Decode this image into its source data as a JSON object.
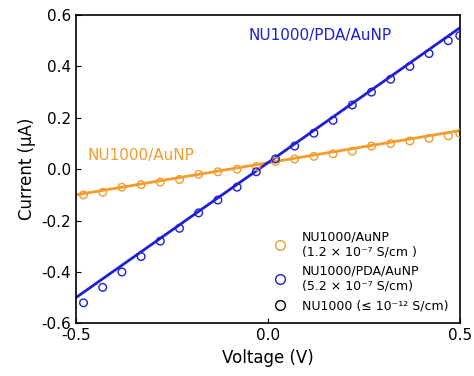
{
  "chart_data": {
    "type": "scatter",
    "x_label": "Voltage (V)",
    "y_label": "Current (μA)",
    "xlim": [
      -0.5,
      0.5
    ],
    "xticks": [
      -0.5,
      {
        "value": 0,
        "label": "0.0"
      },
      0.5
    ],
    "ylim": [
      -0.6,
      0.6
    ],
    "yticks": [
      -0.6,
      -0.4,
      -0.2,
      {
        "value": 0,
        "label": "0.0"
      },
      0.2,
      0.4,
      0.6
    ],
    "legend": "lower right",
    "annotations": [
      {
        "text": "NU1000/AuNP",
        "color": "#f39c2b"
      },
      {
        "text": "NU1000/PDA/AuNP",
        "color": "#1f1fd6"
      }
    ],
    "series": [
      {
        "name": "NU1000/AuNP\n(1.2 × 10⁻⁷ S/cm )",
        "type": "scatter",
        "marker": "o",
        "color": "#f39c2b",
        "x": [
          -0.48,
          -0.43,
          -0.38,
          -0.33,
          -0.28,
          -0.23,
          -0.18,
          -0.13,
          -0.08,
          -0.03,
          0.02,
          0.07,
          0.12,
          0.17,
          0.22,
          0.27,
          0.32,
          0.37,
          0.42,
          0.47,
          0.5
        ],
        "values": [
          -0.1,
          -0.09,
          -0.07,
          -0.06,
          -0.05,
          -0.04,
          -0.02,
          -0.01,
          0.0,
          0.01,
          0.03,
          0.04,
          0.05,
          0.06,
          0.07,
          0.09,
          0.1,
          0.11,
          0.12,
          0.13,
          0.14
        ]
      },
      {
        "name": "NU1000/PDA/AuNP\n(5.2 × 10⁻⁷ S/cm)",
        "type": "scatter",
        "marker": "o",
        "color": "#1f1fd6",
        "x": [
          -0.48,
          -0.43,
          -0.38,
          -0.33,
          -0.28,
          -0.23,
          -0.18,
          -0.13,
          -0.08,
          -0.03,
          0.02,
          0.07,
          0.12,
          0.17,
          0.22,
          0.27,
          0.32,
          0.37,
          0.42,
          0.47,
          0.5
        ],
        "values": [
          -0.52,
          -0.46,
          -0.4,
          -0.34,
          -0.28,
          -0.23,
          -0.17,
          -0.12,
          -0.07,
          -0.01,
          0.04,
          0.09,
          0.14,
          0.19,
          0.25,
          0.3,
          0.35,
          0.4,
          0.45,
          0.5,
          0.52
        ]
      },
      {
        "name": "NU1000 (≤ 10⁻¹² S/cm)",
        "type": "scatter",
        "marker": "o",
        "color": "#000000",
        "x": [],
        "values": []
      },
      {
        "type": "line",
        "line_style": "solid",
        "color": "#f39c2b",
        "x": [
          -0.5,
          0.5
        ],
        "values": [
          -0.1,
          0.15
        ]
      },
      {
        "type": "line",
        "line_style": "solid",
        "color": "#1f1fd6",
        "x": [
          -0.5,
          0.5
        ],
        "values": [
          -0.5,
          0.55
        ]
      }
    ]
  }
}
